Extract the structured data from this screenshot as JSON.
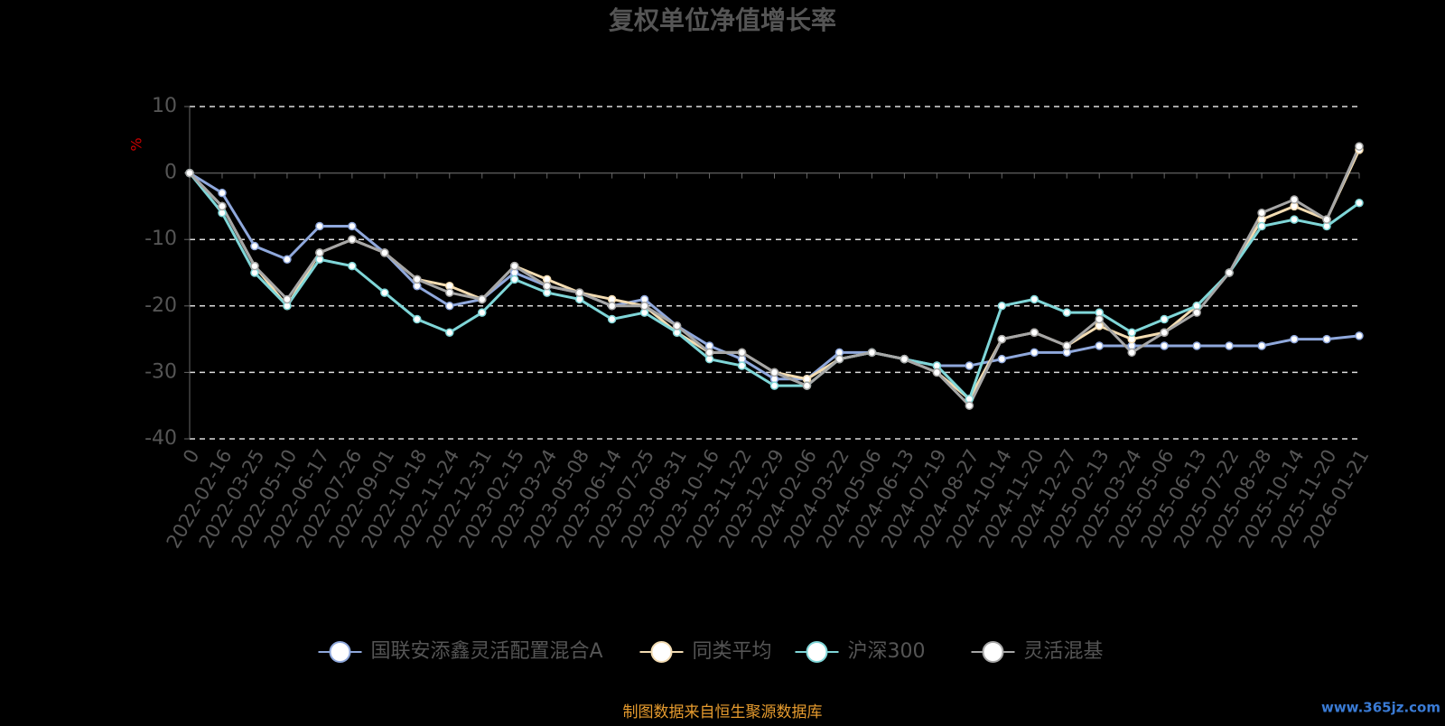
{
  "chart_data": {
    "type": "line",
    "title": "复权单位净值增长率",
    "y_label": "%",
    "categories": [
      "0",
      "2022-02-16",
      "2022-03-25",
      "2022-05-10",
      "2022-06-17",
      "2022-07-26",
      "2022-09-01",
      "2022-10-18",
      "2022-11-24",
      "2022-12-31",
      "2023-02-15",
      "2023-03-24",
      "2023-05-08",
      "2023-06-14",
      "2023-07-25",
      "2023-08-31",
      "2023-10-16",
      "2023-11-22",
      "2023-12-29",
      "2024-02-06",
      "2024-03-22",
      "2024-05-06",
      "2024-06-13",
      "2024-07-19",
      "2024-08-27",
      "2024-10-14",
      "2024-11-20",
      "2024-12-27",
      "2025-02-13",
      "2025-03-24",
      "2025-05-06",
      "2025-06-13",
      "2025-07-22",
      "2025-08-28",
      "2025-10-14",
      "2025-11-20",
      "2026-01-21"
    ],
    "series": [
      {
        "name": "国联安添鑫灵活配置混合A",
        "color": "#8fa8dc",
        "values": [
          0,
          -3,
          -11,
          -13,
          -8,
          -8,
          -12,
          -17,
          -20,
          -19,
          -15,
          -17,
          -18,
          -20,
          -19,
          -23,
          -26,
          -28,
          -31,
          -31,
          -27,
          -27,
          -28,
          -29,
          -29,
          -28,
          -27,
          -27,
          -26,
          -26,
          -26,
          -26,
          -26,
          -26,
          -25,
          -25,
          -24.5
        ]
      },
      {
        "name": "同类平均",
        "color": "#f3dcb2",
        "values": [
          0,
          -5,
          -14,
          -20,
          -12,
          -10,
          -12,
          -16,
          -17,
          -19,
          -14,
          -16,
          -18,
          -19,
          -20,
          -24,
          -27,
          -27,
          -30,
          -31,
          -28,
          -27,
          -28,
          -30,
          -34,
          -25,
          -24,
          -26,
          -23,
          -25,
          -24,
          -20,
          -15,
          -7,
          -5,
          -7,
          3.5
        ]
      },
      {
        "name": "沪深300",
        "color": "#7fd6d8",
        "values": [
          0,
          -6,
          -15,
          -20,
          -13,
          -14,
          -18,
          -22,
          -24,
          -21,
          -16,
          -18,
          -19,
          -22,
          -21,
          -24,
          -28,
          -29,
          -32,
          -32,
          -28,
          -27,
          -28,
          -29,
          -34,
          -20,
          -19,
          -21,
          -21,
          -24,
          -22,
          -20,
          -15,
          -8,
          -7,
          -8,
          -4.5
        ]
      },
      {
        "name": "灵活混基",
        "color": "#a6a6a6",
        "values": [
          0,
          -5,
          -14,
          -19,
          -12,
          -10,
          -12,
          -16,
          -18,
          -19,
          -14,
          -17,
          -18,
          -20,
          -20,
          -23,
          -27,
          -27,
          -30,
          -32,
          -28,
          -27,
          -28,
          -30,
          -35,
          -25,
          -24,
          -26,
          -22,
          -27,
          -24,
          -21,
          -15,
          -6,
          -4,
          -7,
          4
        ]
      }
    ],
    "ylim": [
      -40,
      10
    ],
    "yticks": [
      -40,
      -30,
      -20,
      -10,
      0,
      10
    ],
    "grid": true,
    "legend": "bottom",
    "source": "制图数据来自恒生聚源数据库",
    "watermark": "www.365jz.com"
  }
}
